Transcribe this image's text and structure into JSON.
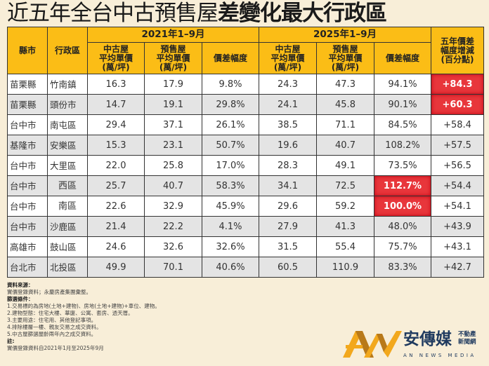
{
  "title": {
    "regular": "近五年全台中古預售屋",
    "bold": "差變化最大行政區"
  },
  "header": {
    "county": "縣市",
    "district": "行政區",
    "period_2021": "2021年1–9月",
    "period_2025": "2025年1–9月",
    "used_price": "中古屋\n平均單價\n(萬/坪)",
    "presale_price": "預售屋\n平均單價\n(萬/坪)",
    "gap": "價差幅度",
    "change": "五年價差\n幅度增減\n(百分點)"
  },
  "rows": [
    [
      "苗栗縣",
      "竹南鎮",
      "16.3",
      "17.9",
      "9.8%",
      "24.3",
      "47.3",
      "94.1%",
      "+84.3"
    ],
    [
      "苗栗縣",
      "頭份市",
      "14.7",
      "19.1",
      "29.8%",
      "24.1",
      "45.8",
      "90.1%",
      "+60.3"
    ],
    [
      "台中市",
      "南屯區",
      "29.4",
      "37.1",
      "26.1%",
      "38.5",
      "71.1",
      "84.5%",
      "+58.4"
    ],
    [
      "基隆市",
      "安樂區",
      "15.3",
      "23.1",
      "50.7%",
      "19.6",
      "40.7",
      "108.2%",
      "+57.5"
    ],
    [
      "台中市",
      "大里區",
      "22.0",
      "25.8",
      "17.0%",
      "28.3",
      "49.1",
      "73.5%",
      "+56.5"
    ],
    [
      "台中市",
      "西區",
      "25.7",
      "40.7",
      "58.3%",
      "34.1",
      "72.5",
      "112.7%",
      "+54.4"
    ],
    [
      "台中市",
      "南區",
      "22.6",
      "32.9",
      "45.9%",
      "29.6",
      "59.2",
      "100.0%",
      "+54.1"
    ],
    [
      "台中市",
      "沙鹿區",
      "21.4",
      "22.2",
      "4.1%",
      "27.9",
      "41.3",
      "48.0%",
      "+43.9"
    ],
    [
      "高雄市",
      "鼓山區",
      "24.6",
      "32.6",
      "32.6%",
      "31.5",
      "55.4",
      "75.7%",
      "+43.1"
    ],
    [
      "台北市",
      "北投區",
      "49.9",
      "70.1",
      "40.6%",
      "60.5",
      "110.9",
      "83.3%",
      "+42.7"
    ]
  ],
  "highlight_color": "#e8363b",
  "notes": {
    "source_label": "資料來源：",
    "source": "實價登錄資料；永慶房產集團彙整。",
    "filter_label": "篩選條件：",
    "filters": [
      "1.交易標的為房地(土地+建物)、房地(土地+建物)+車位、建物。",
      "2.建物型態：住宅大樓、華廈、公寓、套房、透天厝。",
      "3.主要用途：住宅用、其他登記事項。",
      "4.排除樓層一樓、親友交易之成交資料。",
      "5.中古屋篩選屋齡兩年內之成交資料。"
    ],
    "note_label": "註:",
    "note": "實價登錄資料自2021年1月至2025年9月"
  },
  "logo": {
    "name": "安傳媒",
    "tag1": "不動產",
    "tag2": "新聞網",
    "en": "AN NEWS MEDIA"
  }
}
